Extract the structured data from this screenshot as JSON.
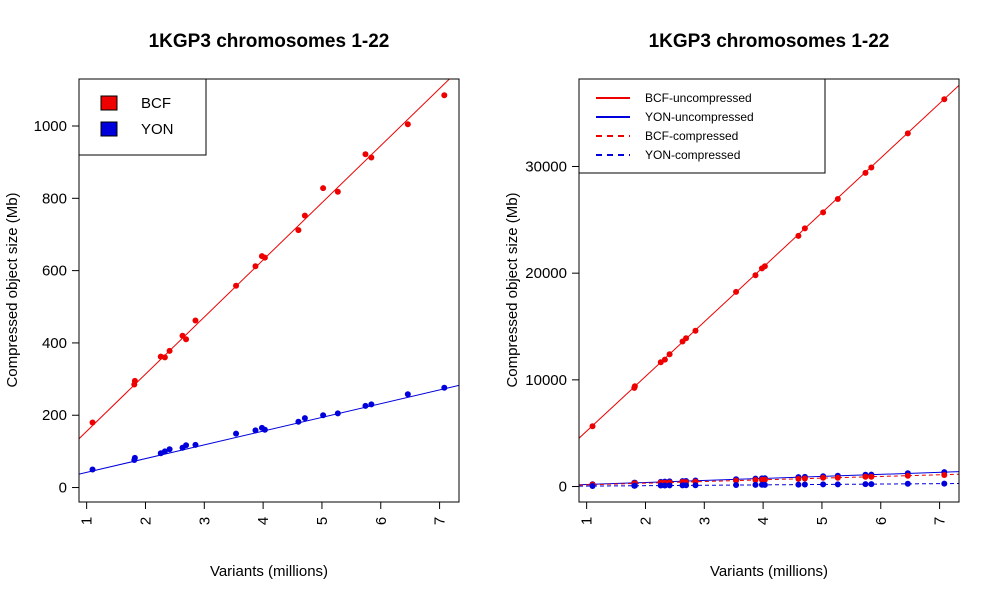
{
  "colors": {
    "bcf": "#ee0000",
    "yon": "#0000dd"
  },
  "chart_data": [
    {
      "type": "scatter",
      "title": "1KGP3 chromosomes 1-22",
      "xlabel": "Variants (millions)",
      "ylabel": "Compressed object size (Mb)",
      "xlim": [
        0.87,
        7.33
      ],
      "ylim": [
        -40,
        1130
      ],
      "xticks": [
        1,
        2,
        3,
        4,
        5,
        6,
        7
      ],
      "yticks": [
        0,
        200,
        400,
        600,
        800,
        1000
      ],
      "legend_position": "top-left",
      "legend": [
        {
          "label": "BCF",
          "color": "#ee0000",
          "style": "box"
        },
        {
          "label": "YON",
          "color": "#0000dd",
          "style": "box"
        }
      ],
      "x": [
        1.1,
        1.81,
        1.82,
        2.26,
        2.33,
        2.41,
        2.63,
        2.69,
        2.85,
        3.54,
        3.87,
        3.98,
        4.03,
        4.6,
        4.71,
        5.02,
        5.27,
        5.74,
        5.84,
        6.46,
        7.08
      ],
      "series": [
        {
          "name": "BCF",
          "color": "#ee0000",
          "values": [
            180,
            285,
            295,
            362,
            360,
            378,
            420,
            410,
            462,
            558,
            612,
            640,
            636,
            712,
            752,
            828,
            818,
            922,
            913,
            1005,
            1085
          ],
          "fit": [
            -2.4,
            158
          ]
        },
        {
          "name": "YON",
          "color": "#0000dd",
          "values": [
            50,
            76,
            82,
            95,
            100,
            106,
            110,
            117,
            118,
            149,
            158,
            165,
            160,
            182,
            192,
            200,
            205,
            226,
            230,
            258,
            276
          ],
          "fit": [
            4.0,
            38
          ]
        }
      ]
    },
    {
      "type": "scatter",
      "title": "1KGP3 chromosomes 1-22",
      "xlabel": "Variants (millions)",
      "ylabel": "Compressed object size (Mb)",
      "xlim": [
        0.87,
        7.33
      ],
      "ylim": [
        -1450,
        38200
      ],
      "xticks": [
        1,
        2,
        3,
        4,
        5,
        6,
        7
      ],
      "yticks": [
        0,
        10000,
        20000,
        30000
      ],
      "legend_position": "top-left",
      "legend": [
        {
          "label": "BCF-uncompressed",
          "color": "#ee0000",
          "style": "solid"
        },
        {
          "label": "YON-uncompressed",
          "color": "#0000dd",
          "style": "solid"
        },
        {
          "label": "BCF-compressed",
          "color": "#ee0000",
          "style": "dashed"
        },
        {
          "label": "YON-compressed",
          "color": "#0000dd",
          "style": "dashed"
        }
      ],
      "x": [
        1.1,
        1.81,
        1.82,
        2.26,
        2.33,
        2.41,
        2.63,
        2.69,
        2.85,
        3.54,
        3.87,
        3.98,
        4.03,
        4.6,
        4.71,
        5.02,
        5.27,
        5.74,
        5.84,
        6.46,
        7.08
      ],
      "series": [
        {
          "name": "BCF-uncompressed",
          "color": "#ee0000",
          "dash": false,
          "values": [
            5650,
            9250,
            9400,
            11650,
            11900,
            12400,
            13600,
            13900,
            14600,
            18250,
            19800,
            20450,
            20650,
            23500,
            24200,
            25700,
            26950,
            29400,
            29900,
            33100,
            36300
          ],
          "fit": [
            75,
            5120
          ]
        },
        {
          "name": "YON-uncompressed",
          "color": "#0000dd",
          "dash": false,
          "values": [
            210,
            350,
            360,
            440,
            460,
            480,
            510,
            520,
            560,
            680,
            740,
            770,
            780,
            880,
            910,
            960,
            1010,
            1110,
            1120,
            1240,
            1350
          ],
          "fit": [
            0,
            190
          ]
        },
        {
          "name": "BCF-compressed",
          "color": "#ee0000",
          "dash": true,
          "values": [
            180,
            285,
            295,
            362,
            360,
            378,
            420,
            410,
            462,
            558,
            612,
            640,
            636,
            712,
            752,
            828,
            818,
            922,
            913,
            1005,
            1085
          ],
          "fit": [
            -2.4,
            158
          ]
        },
        {
          "name": "YON-compressed",
          "color": "#0000dd",
          "dash": true,
          "values": [
            50,
            76,
            82,
            95,
            100,
            106,
            110,
            117,
            118,
            149,
            158,
            165,
            160,
            182,
            192,
            200,
            205,
            226,
            230,
            258,
            276
          ],
          "fit": [
            4.0,
            38
          ]
        }
      ]
    }
  ]
}
